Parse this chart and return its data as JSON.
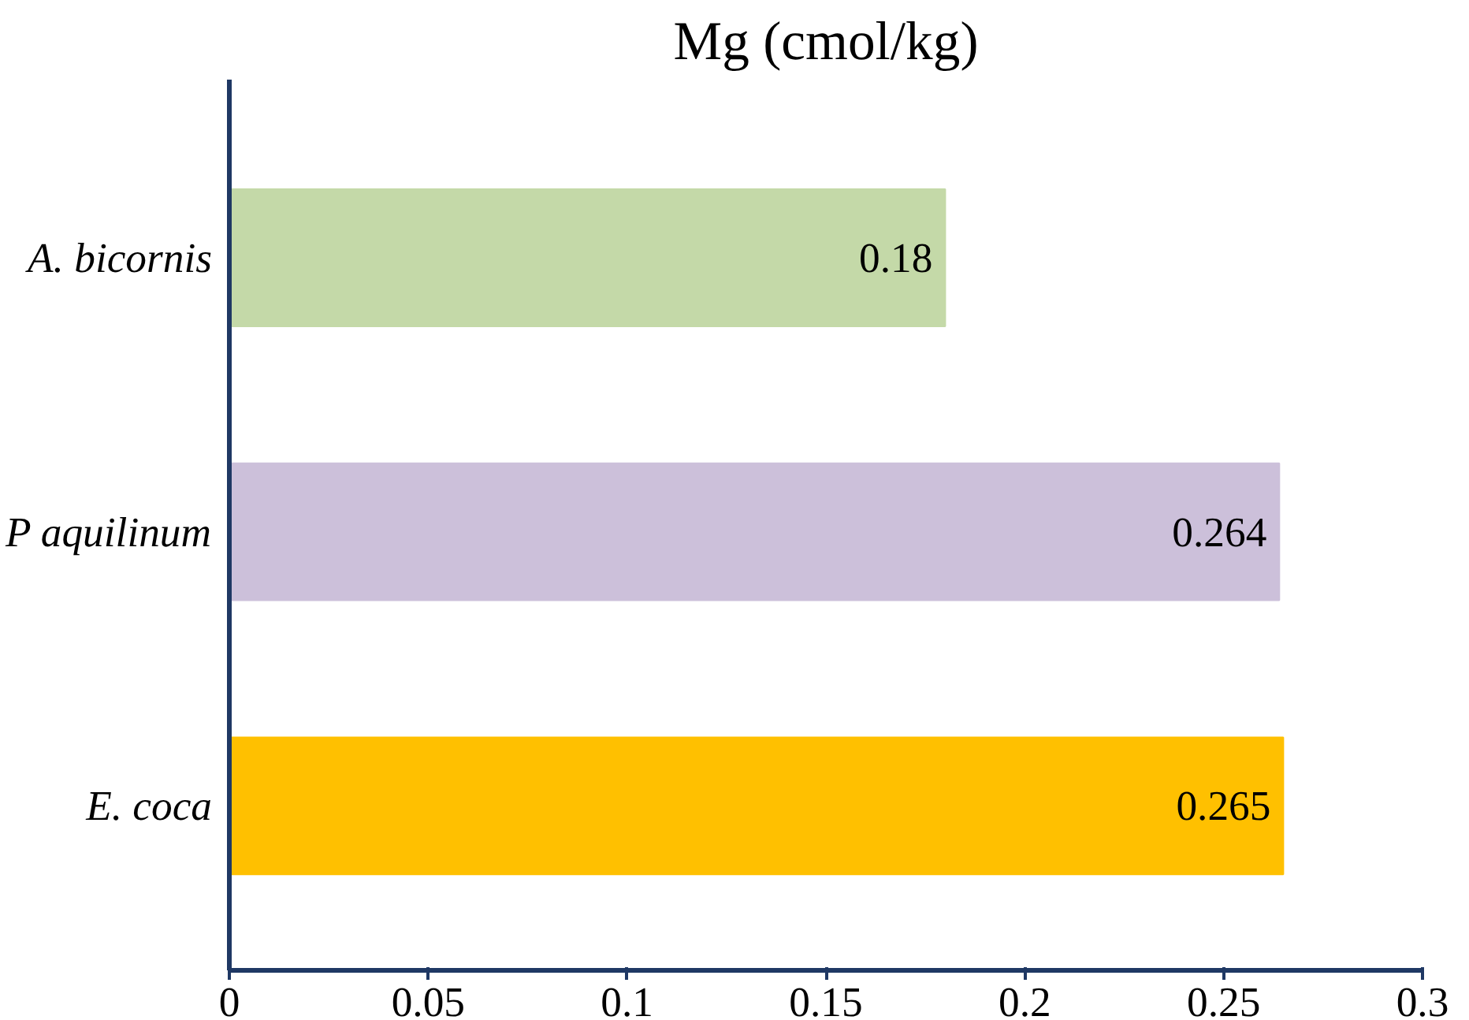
{
  "chart_data": {
    "type": "bar",
    "orientation": "horizontal",
    "title": "Mg (cmol/kg)",
    "categories": [
      "A. bicornis",
      "P aquilinum",
      "E. coca"
    ],
    "values": [
      0.18,
      0.264,
      0.265
    ],
    "colors": [
      "#c4d9a8",
      "#ccc0da",
      "#ffc000"
    ],
    "xlim": [
      0,
      0.3
    ],
    "xticks": [
      0,
      0.05,
      0.1,
      0.15,
      0.2,
      0.25,
      0.3
    ],
    "data_labels": true,
    "grid": false
  }
}
